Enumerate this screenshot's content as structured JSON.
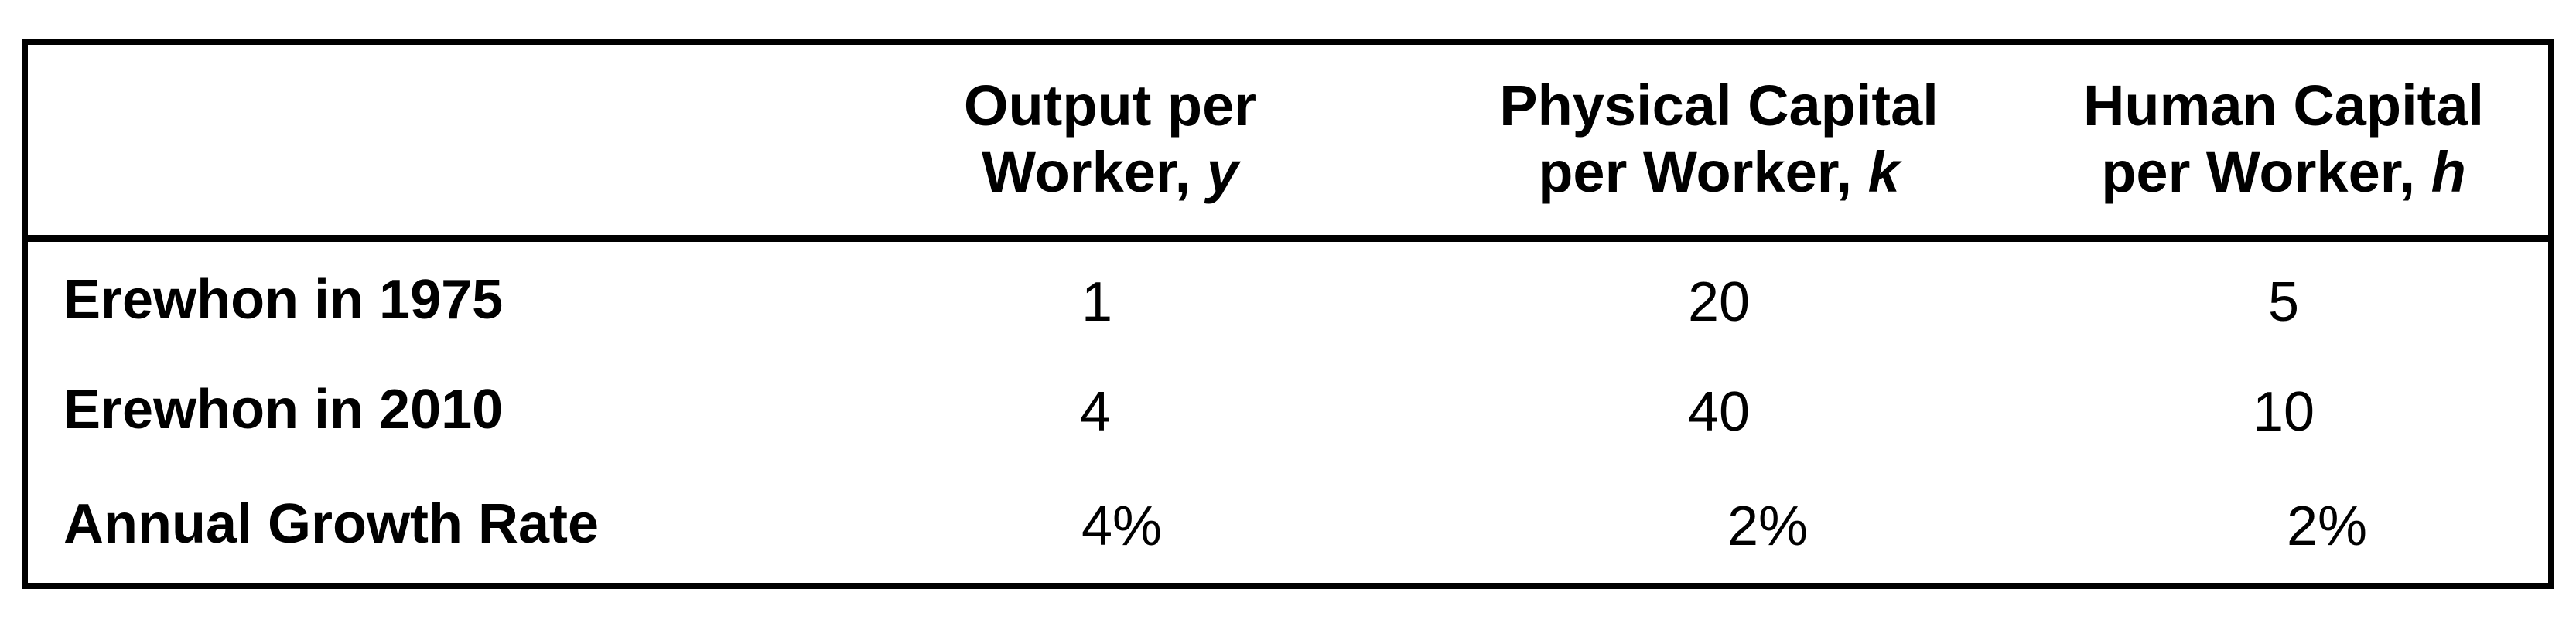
{
  "table": {
    "columns": [
      {
        "line1": "Output per",
        "line2": "Worker,",
        "var": "y"
      },
      {
        "line1": "Physical Capital",
        "line2": "per Worker,",
        "var": "k"
      },
      {
        "line1": "Human Capital",
        "line2": "per Worker,",
        "var": "h"
      }
    ],
    "rows": [
      {
        "label": "Erewhon in 1975",
        "values": [
          "1",
          "20",
          "5"
        ]
      },
      {
        "label": "Erewhon in 2010",
        "values": [
          "4",
          "40",
          "10"
        ]
      },
      {
        "label": "Annual Growth Rate",
        "values": [
          "4%",
          "2%",
          "2%"
        ]
      }
    ]
  }
}
